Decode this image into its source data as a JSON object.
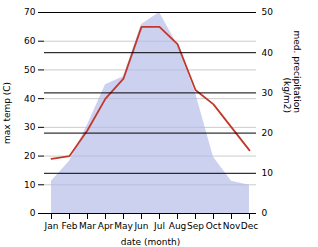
{
  "chart_data": {
    "type": "line",
    "xlabel": "date (month)",
    "ylabel": "max temp (C)",
    "y2label": "med. precipitation\n(kg/m2)",
    "categories": [
      "Jan",
      "Feb",
      "Mar",
      "Apr",
      "May",
      "Jun",
      "Jul",
      "Aug",
      "Sep",
      "Oct",
      "Nov",
      "Dec"
    ],
    "series": [
      {
        "type": "area",
        "axis": "y2",
        "color": "#b0b8e8",
        "values": [
          8,
          13,
          22,
          32,
          34,
          47,
          50,
          42,
          30,
          14,
          8,
          7
        ]
      },
      {
        "type": "line",
        "color": "#c0392b",
        "values": [
          19,
          20,
          29,
          40,
          47,
          65,
          65,
          59,
          43,
          38,
          30,
          22
        ]
      }
    ],
    "ylim": [
      0,
      70
    ],
    "yticks": [
      0,
      10,
      20,
      30,
      40,
      50,
      60,
      70
    ],
    "y2lim": [
      0,
      50
    ],
    "y2ticks": [
      0,
      10,
      20,
      30,
      40,
      50
    ],
    "grid": true
  }
}
